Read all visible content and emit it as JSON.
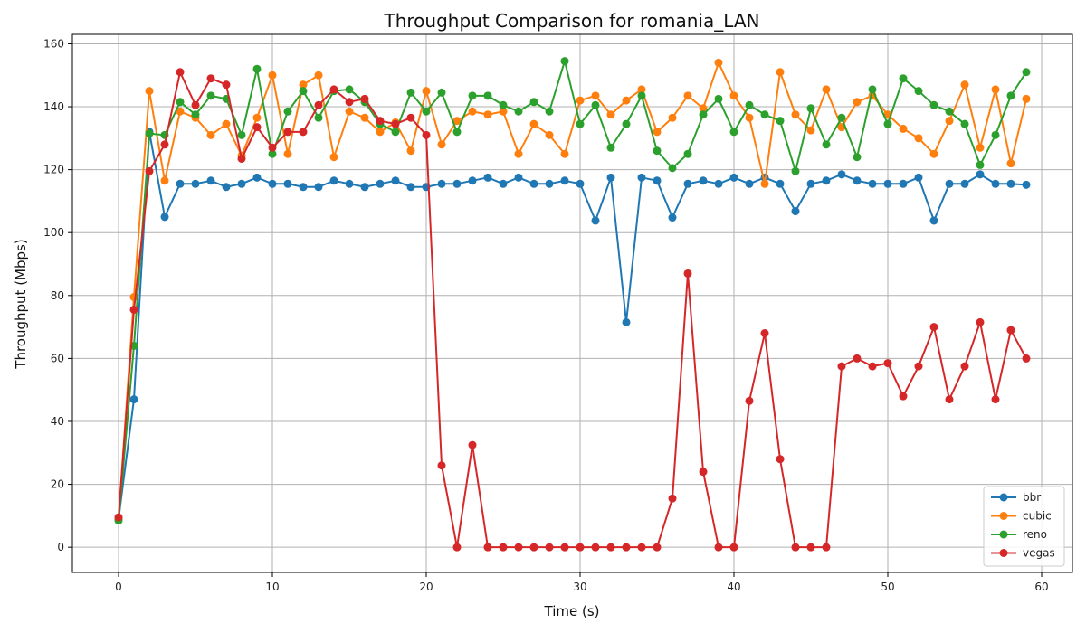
{
  "chart_data": {
    "type": "line",
    "title": "Throughput Comparison for romania_LAN",
    "xlabel": "Time (s)",
    "ylabel": "Throughput (Mbps)",
    "xlim": [
      -3,
      62
    ],
    "ylim": [
      -8,
      163
    ],
    "xticks": [
      0,
      10,
      20,
      30,
      40,
      50,
      60
    ],
    "yticks": [
      0,
      20,
      40,
      60,
      80,
      100,
      120,
      140,
      160
    ],
    "grid": true,
    "legend_position": "lower-right",
    "x": [
      0,
      1,
      2,
      3,
      4,
      5,
      6,
      7,
      8,
      9,
      10,
      11,
      12,
      13,
      14,
      15,
      16,
      17,
      18,
      19,
      20,
      21,
      22,
      23,
      24,
      25,
      26,
      27,
      28,
      29,
      30,
      31,
      32,
      33,
      34,
      35,
      36,
      37,
      38,
      39,
      40,
      41,
      42,
      43,
      44,
      45,
      46,
      47,
      48,
      49,
      50,
      51,
      52,
      53,
      54,
      55,
      56,
      57,
      58,
      59
    ],
    "series": [
      {
        "name": "bbr",
        "color": "#1f77b4",
        "values": [
          9,
          47,
          132,
          105,
          115.5,
          115.5,
          116.5,
          114.5,
          115.5,
          117.5,
          115.5,
          115.5,
          114.5,
          114.5,
          116.5,
          115.5,
          114.5,
          115.5,
          116.5,
          114.5,
          114.5,
          115.5,
          115.5,
          116.5,
          117.5,
          115.5,
          117.5,
          115.5,
          115.5,
          116.5,
          115.5,
          103.8,
          117.5,
          71.5,
          117.5,
          116.5,
          104.8,
          115.5,
          116.5,
          115.5,
          117.5,
          115.5,
          117.5,
          115.5,
          106.8,
          115.5,
          116.5,
          118.5,
          116.5,
          115.5,
          115.5,
          115.5,
          117.5,
          103.8,
          115.5,
          115.5,
          118.5,
          115.5,
          115.5,
          115.2
        ]
      },
      {
        "name": "cubic",
        "color": "#ff7f0e",
        "values": [
          9,
          79.5,
          145,
          116.5,
          138.5,
          136.5,
          131,
          134.5,
          124.5,
          136.5,
          150,
          125,
          147,
          150,
          124,
          138.5,
          136.5,
          132,
          135,
          126,
          145,
          128,
          135.5,
          138.5,
          137.5,
          138.5,
          125,
          134.5,
          131,
          125,
          142,
          143.5,
          137.5,
          142,
          145.5,
          132,
          136.5,
          143.5,
          139.5,
          154,
          143.5,
          136.5,
          115.5,
          151,
          137.5,
          132.5,
          145.5,
          133.5,
          141.5,
          143.5,
          137.5,
          133,
          130,
          125,
          135.5,
          147,
          127,
          145.5,
          122,
          142.5
        ]
      },
      {
        "name": "reno",
        "color": "#2ca02c",
        "values": [
          8.5,
          64,
          131.5,
          131,
          141.5,
          137.5,
          143.5,
          142.5,
          131,
          152,
          125,
          138.5,
          145,
          136.5,
          145,
          145.5,
          141.5,
          134.5,
          132,
          144.5,
          138.5,
          144.5,
          132,
          143.5,
          143.5,
          140.5,
          138.5,
          141.5,
          138.5,
          154.5,
          134.5,
          140.5,
          127,
          134.5,
          143.5,
          126,
          120.5,
          125,
          137.5,
          142.5,
          132,
          140.5,
          137.5,
          135.5,
          119.5,
          139.5,
          128,
          136.5,
          124,
          145.5,
          134.5,
          149,
          145,
          140.5,
          138.5,
          134.5,
          121.5,
          131,
          143.5,
          151
        ]
      },
      {
        "name": "vegas",
        "color": "#d62728",
        "values": [
          9.5,
          75.5,
          119.5,
          128,
          151,
          140.5,
          149,
          147,
          123.5,
          133.5,
          127,
          132,
          132,
          140.5,
          145.5,
          141.5,
          142.5,
          135.5,
          134.5,
          136.5,
          131,
          26,
          0,
          32.5,
          0,
          0,
          0,
          0,
          0,
          0,
          0,
          0,
          0,
          0,
          0,
          0,
          15.5,
          87,
          24,
          0,
          0,
          46.5,
          68,
          28,
          0,
          0,
          0,
          57.5,
          60,
          57.5,
          58.5,
          48,
          57.5,
          70,
          47,
          57.5,
          71.5,
          47,
          69,
          60
        ]
      }
    ]
  }
}
